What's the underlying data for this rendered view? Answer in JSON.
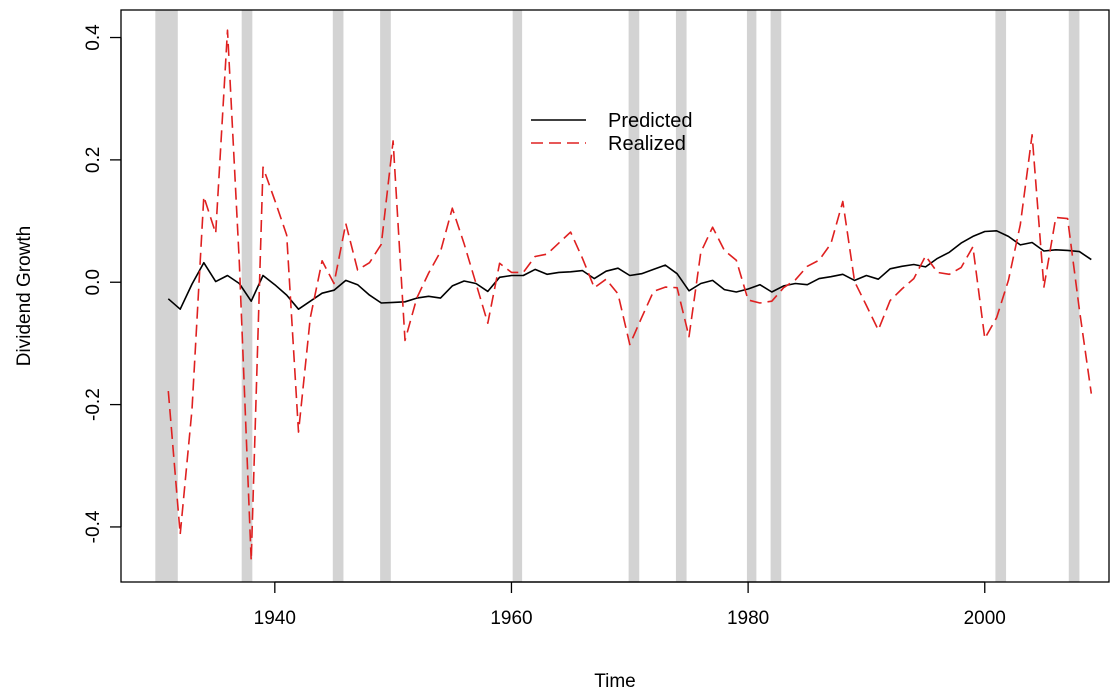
{
  "chart_data": {
    "type": "line",
    "title": "",
    "xlabel": "Time",
    "ylabel": "Dividend Growth",
    "xlim": [
      1927,
      2010.5
    ],
    "ylim": [
      -0.49,
      0.445
    ],
    "x_ticks": [
      1940,
      1960,
      1980,
      2000
    ],
    "x_tick_labels": [
      "1940",
      "1960",
      "1980",
      "2000"
    ],
    "y_ticks": [
      -0.4,
      -0.2,
      0.0,
      0.2,
      0.4
    ],
    "y_tick_labels": [
      "-0.4",
      "-0.2",
      "0.0",
      "0.2",
      "0.4"
    ],
    "grid": false,
    "legend": {
      "position": "top-center"
    },
    "recession_shading_color": "#d3d3d3",
    "recession_bands": [
      [
        1929.9,
        1931.8
      ],
      [
        1937.2,
        1938.1
      ],
      [
        1944.9,
        1945.8
      ],
      [
        1948.9,
        1949.8
      ],
      [
        1960.1,
        1960.9
      ],
      [
        1969.9,
        1970.8
      ],
      [
        1973.9,
        1974.8
      ],
      [
        1979.9,
        1980.7
      ],
      [
        1981.9,
        1982.8
      ],
      [
        2000.9,
        2001.8
      ],
      [
        2007.1,
        2008.0
      ]
    ],
    "x": [
      1931,
      1932,
      1933,
      1934,
      1935,
      1936,
      1937,
      1938,
      1939,
      1940,
      1941,
      1942,
      1943,
      1944,
      1945,
      1946,
      1947,
      1948,
      1949,
      1950,
      1951,
      1952,
      1953,
      1954,
      1955,
      1956,
      1957,
      1958,
      1959,
      1960,
      1961,
      1962,
      1963,
      1964,
      1965,
      1966,
      1967,
      1968,
      1969,
      1970,
      1971,
      1972,
      1973,
      1974,
      1975,
      1976,
      1977,
      1978,
      1979,
      1980,
      1981,
      1982,
      1983,
      1984,
      1985,
      1986,
      1987,
      1988,
      1989,
      1990,
      1991,
      1992,
      1993,
      1994,
      1995,
      1996,
      1997,
      1998,
      1999,
      2000,
      2001,
      2002,
      2003,
      2004,
      2005,
      2006,
      2007,
      2008,
      2009
    ],
    "series": [
      {
        "name": "Predicted",
        "color": "#000000",
        "dash": "solid",
        "values": [
          -0.027,
          -0.044,
          -0.003,
          0.032,
          0.001,
          0.011,
          -0.002,
          -0.031,
          0.011,
          -0.004,
          -0.021,
          -0.044,
          -0.031,
          -0.018,
          -0.013,
          0.003,
          -0.004,
          -0.021,
          -0.034,
          -0.033,
          -0.032,
          -0.026,
          -0.023,
          -0.026,
          -0.006,
          0.002,
          -0.002,
          -0.015,
          0.008,
          0.011,
          0.011,
          0.021,
          0.013,
          0.016,
          0.017,
          0.019,
          0.006,
          0.018,
          0.023,
          0.011,
          0.014,
          0.021,
          0.028,
          0.014,
          -0.014,
          -0.002,
          0.003,
          -0.012,
          -0.016,
          -0.011,
          -0.004,
          -0.016,
          -0.006,
          -0.002,
          -0.004,
          0.006,
          0.009,
          0.013,
          0.003,
          0.011,
          0.005,
          0.022,
          0.026,
          0.029,
          0.025,
          0.039,
          0.049,
          0.064,
          0.075,
          0.083,
          0.084,
          0.075,
          0.061,
          0.065,
          0.051,
          0.053,
          0.052,
          0.05,
          0.037
        ]
      },
      {
        "name": "Realized",
        "color": "#df2020",
        "dash": "dashed",
        "values": [
          -0.178,
          -0.412,
          -0.208,
          0.14,
          0.08,
          0.412,
          0.033,
          -0.455,
          0.188,
          0.134,
          0.077,
          -0.245,
          -0.058,
          0.035,
          -0.002,
          0.096,
          0.02,
          0.032,
          0.062,
          0.231,
          -0.095,
          -0.026,
          0.015,
          0.05,
          0.121,
          0.063,
          -0.002,
          -0.067,
          0.031,
          0.016,
          0.016,
          0.042,
          0.046,
          0.064,
          0.082,
          0.039,
          -0.009,
          0.005,
          -0.019,
          -0.102,
          -0.058,
          -0.015,
          -0.008,
          -0.009,
          -0.089,
          0.049,
          0.09,
          0.052,
          0.036,
          -0.029,
          -0.034,
          -0.031,
          -0.009,
          0.004,
          0.026,
          0.036,
          0.063,
          0.132,
          0.001,
          -0.038,
          -0.078,
          -0.03,
          -0.011,
          0.006,
          0.043,
          0.016,
          0.013,
          0.024,
          0.058,
          -0.092,
          -0.058,
          0.003,
          0.094,
          0.241,
          -0.008,
          0.106,
          0.104,
          -0.045,
          -0.182
        ]
      }
    ]
  }
}
